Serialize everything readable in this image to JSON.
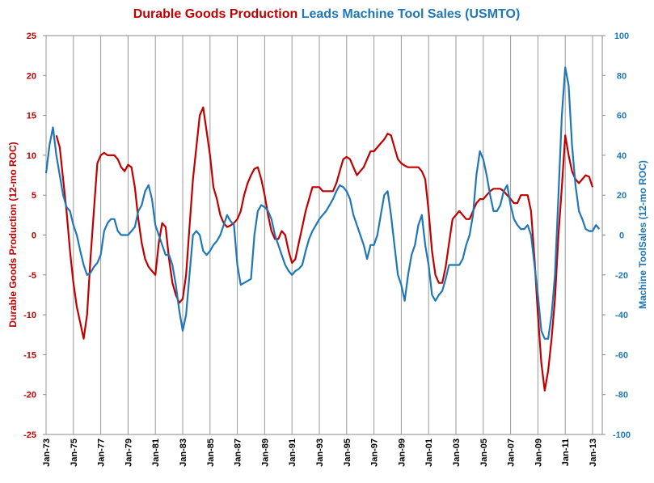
{
  "chart_data": {
    "type": "line",
    "title_segments": [
      {
        "text": "Durable Goods Production",
        "color": "#c00000"
      },
      {
        "text": "Leads Machine Tool Sales (USMTO)",
        "color": "#1f77b8"
      }
    ],
    "y_label": "Durable Goods Production (12-mo ROC)",
    "y2_label": "Machine ToolSales (12-mo ROC)",
    "categories": [
      "Jan-73",
      null,
      null,
      null,
      null,
      null,
      null,
      null,
      "Jan-75",
      null,
      null,
      null,
      null,
      null,
      null,
      null,
      "Jan-77",
      null,
      null,
      null,
      null,
      null,
      null,
      null,
      "Jan-79",
      null,
      null,
      null,
      null,
      null,
      null,
      null,
      "Jan-81",
      null,
      null,
      null,
      null,
      null,
      null,
      null,
      "Jan-83",
      null,
      null,
      null,
      null,
      null,
      null,
      null,
      "Jan-85",
      null,
      null,
      null,
      null,
      null,
      null,
      null,
      "Jan-87",
      null,
      null,
      null,
      null,
      null,
      null,
      null,
      "Jan-89",
      null,
      null,
      null,
      null,
      null,
      null,
      null,
      "Jan-91",
      null,
      null,
      null,
      null,
      null,
      null,
      null,
      "Jan-93",
      null,
      null,
      null,
      null,
      null,
      null,
      null,
      "Jan-95",
      null,
      null,
      null,
      null,
      null,
      null,
      null,
      "Jan-97",
      null,
      null,
      null,
      null,
      null,
      null,
      null,
      "Jan-99",
      null,
      null,
      null,
      null,
      null,
      null,
      null,
      "Jan-01",
      null,
      null,
      null,
      null,
      null,
      null,
      null,
      "Jan-03",
      null,
      null,
      null,
      null,
      null,
      null,
      null,
      "Jan-05",
      null,
      null,
      null,
      null,
      null,
      null,
      null,
      "Jan-07",
      null,
      null,
      null,
      null,
      null,
      null,
      null,
      "Jan-09",
      null,
      null,
      null,
      null,
      null,
      null,
      null,
      "Jan-11",
      null,
      null,
      null,
      null,
      null,
      null,
      null,
      "Jan-13",
      null,
      null
    ],
    "series": [
      {
        "name": "Durable Goods Production",
        "color": "#c00000",
        "axis": "y",
        "values": [
          null,
          null,
          null,
          12.5,
          11,
          7,
          3,
          -2,
          -6,
          -9,
          -11,
          -13,
          -10,
          -3,
          3,
          9,
          10,
          10.3,
          10,
          10,
          10,
          9.5,
          8.5,
          8,
          8.8,
          8.5,
          6,
          2,
          -1,
          -3,
          -4,
          -4.5,
          -5,
          -1,
          1.5,
          1,
          -3,
          -6,
          -7.5,
          -8.5,
          -8,
          -5,
          1,
          7,
          11,
          15,
          16,
          13,
          10,
          6,
          4.5,
          2.5,
          1.5,
          1,
          1.2,
          1.5,
          2,
          3,
          5,
          6.5,
          7.5,
          8.3,
          8.5,
          7,
          5,
          2.5,
          0.5,
          -0.5,
          -0.5,
          0.5,
          0,
          -2,
          -3.5,
          -3,
          -1,
          1,
          3,
          4.5,
          6,
          6,
          6,
          5.5,
          5.5,
          5.5,
          5.5,
          6.5,
          8,
          9.5,
          9.8,
          9.5,
          8.5,
          7.5,
          8,
          8.5,
          9.5,
          10.5,
          10.5,
          11,
          11.5,
          12,
          12.7,
          12.5,
          11,
          9.5,
          9,
          8.7,
          8.5,
          8.5,
          8.5,
          8.5,
          8,
          7,
          3,
          -2,
          -5,
          -6,
          -6,
          -4,
          -1,
          2,
          2.5,
          3,
          2.5,
          2,
          2,
          3,
          4,
          4.5,
          4.5,
          5,
          5.5,
          5.8,
          5.8,
          5.8,
          5.5,
          5,
          4.5,
          4,
          4,
          5,
          5,
          5,
          3,
          -3,
          -10,
          -16,
          -19.5,
          -17,
          -13,
          -8,
          0,
          6,
          12.5,
          10,
          8,
          7,
          6.5,
          7,
          7.5,
          7.3,
          6,
          null,
          null
        ]
      },
      {
        "name": "Machine Tool Sales",
        "color": "#1f77b8",
        "axis": "y2",
        "values": [
          31,
          45,
          54,
          40,
          30,
          20,
          14,
          12,
          5,
          0,
          -8,
          -15,
          -20,
          -19,
          -16,
          -14,
          -10,
          2,
          6,
          8,
          8,
          2,
          0,
          0,
          0,
          2,
          4,
          12,
          15,
          22,
          25,
          18,
          5,
          0,
          -5,
          -10,
          -10,
          -15,
          -25,
          -38,
          -48,
          -40,
          -20,
          0,
          2,
          0,
          -8,
          -10,
          -8,
          -5,
          -3,
          0,
          5,
          10,
          7,
          5,
          -15,
          -25,
          -24,
          -23,
          -22,
          0,
          12,
          15,
          14,
          12,
          8,
          0,
          -5,
          -10,
          -15,
          -18,
          -20,
          -18,
          -17,
          -15,
          -8,
          -2,
          2,
          5,
          8,
          10,
          12,
          15,
          18,
          22,
          25,
          24,
          22,
          18,
          10,
          5,
          0,
          -5,
          -12,
          -5,
          -5,
          0,
          10,
          20,
          22,
          10,
          -5,
          -20,
          -25,
          -33,
          -20,
          -10,
          -5,
          5,
          10,
          -5,
          -15,
          -30,
          -33,
          -30,
          -28,
          -22,
          -15,
          -15,
          -15,
          -15,
          -12,
          -5,
          0,
          10,
          30,
          42,
          38,
          30,
          20,
          12,
          12,
          15,
          22,
          25,
          15,
          8,
          5,
          3,
          3,
          5,
          0,
          -15,
          -30,
          -48,
          -52,
          -52,
          -40,
          -20,
          20,
          60,
          84,
          75,
          45,
          25,
          12,
          8,
          3,
          2,
          2,
          5,
          3
        ]
      }
    ],
    "ylim": [
      -25,
      25
    ],
    "yticks": [
      -25,
      -20,
      -15,
      -10,
      -5,
      0,
      5,
      10,
      15,
      20,
      25
    ],
    "y2lim": [
      -100,
      100
    ],
    "y2ticks": [
      -100,
      -80,
      -60,
      -40,
      -20,
      0,
      20,
      40,
      60,
      80,
      100
    ],
    "grid": true
  }
}
